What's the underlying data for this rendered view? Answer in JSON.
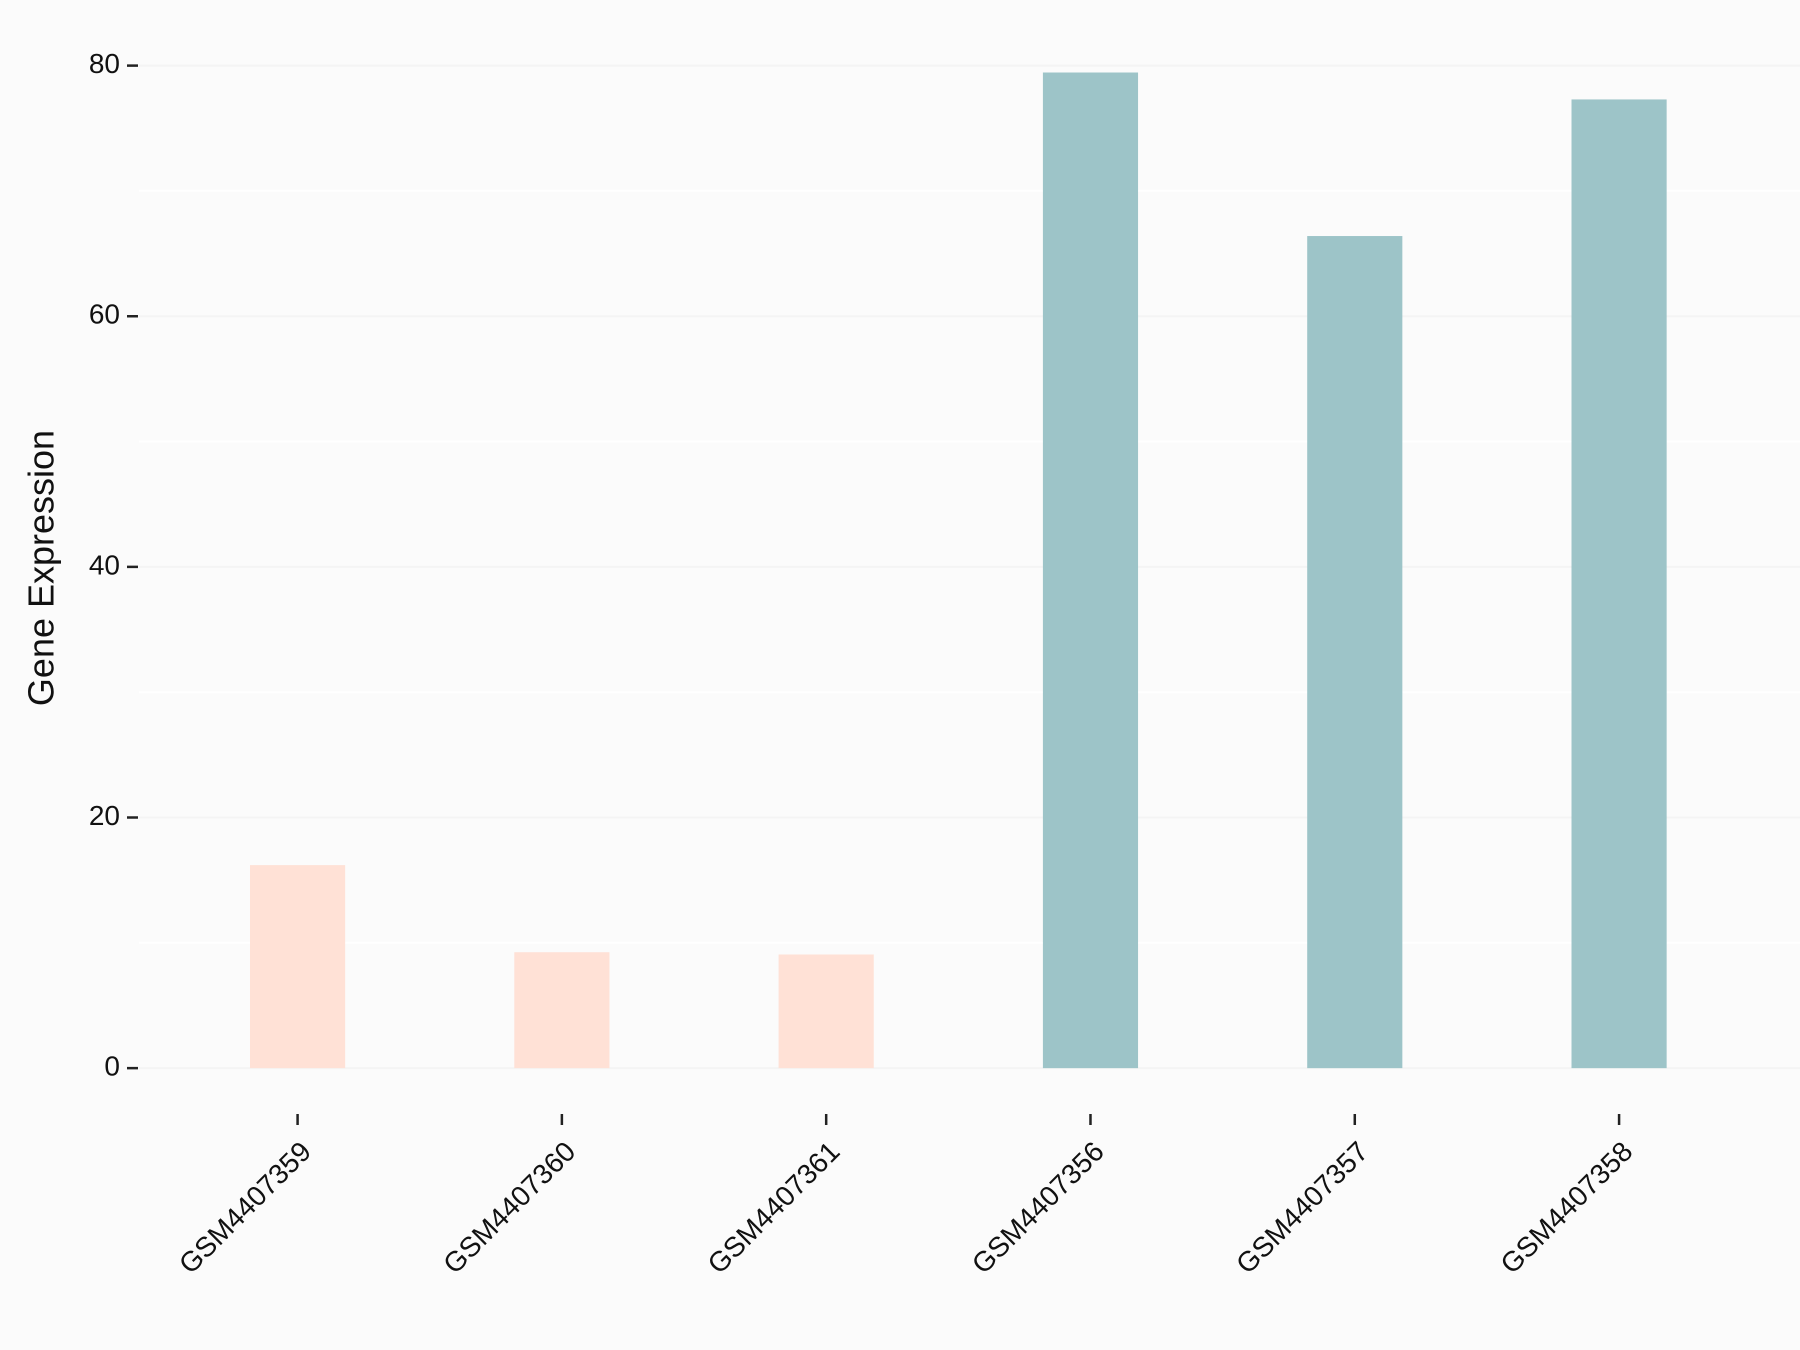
{
  "chart_data": {
    "type": "bar",
    "ylabel": "Gene Expression",
    "categories": [
      "GSM4407359",
      "GSM4407360",
      "GSM4407361",
      "GSM4407356",
      "GSM4407357",
      "GSM4407358"
    ],
    "values": [
      16.2,
      9.25,
      9.07,
      79.45,
      66.4,
      77.3
    ],
    "colors": [
      "#ffe1d6",
      "#ffe1d6",
      "#ffe1d6",
      "#9dc4c8",
      "#9dc4c8",
      "#9dc4c8"
    ],
    "ylim": [
      -3.5,
      83.4
    ],
    "yticks": [
      0,
      20,
      40,
      60,
      80
    ],
    "minor_yticks": [
      10,
      30,
      50,
      70
    ],
    "grid": true
  }
}
